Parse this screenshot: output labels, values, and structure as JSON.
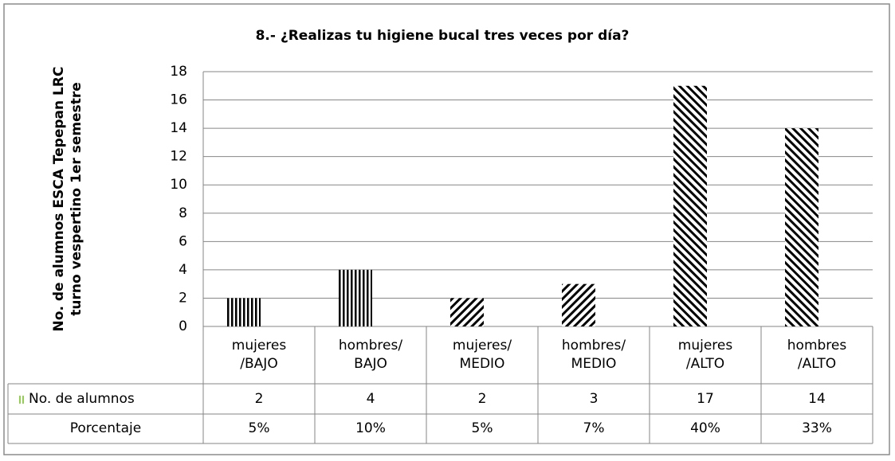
{
  "chart_data": {
    "type": "bar",
    "title": "8.- ¿Realizas tu higiene bucal tres veces por día?",
    "y_label": "No. de alumnos ESCA Tepepan LRC\nturno vespertino 1er  semestre",
    "categories": [
      "mujeres\n/BAJO",
      "hombres/\nBAJO",
      "mujeres/\nMEDIO",
      "hombres/\nMEDIO",
      "mujeres\n/ALTO",
      "hombres\n/ALTO"
    ],
    "series": [
      {
        "name": "No. de alumnos",
        "color": "#000000",
        "values": [
          2,
          4,
          2,
          3,
          17,
          14
        ]
      }
    ],
    "patterns": [
      "vertical",
      "vertical",
      "forward",
      "forward",
      "backward",
      "backward"
    ],
    "percentages": {
      "name": "Porcentaje",
      "values": [
        5,
        10,
        5,
        7,
        40,
        33
      ],
      "value_labels": [
        "5%",
        "10%",
        "5%",
        "7%",
        "40%",
        "33%"
      ]
    },
    "ylim": [
      0,
      18
    ],
    "yticks": [
      0,
      2,
      4,
      6,
      8,
      10,
      12,
      14,
      16,
      18
    ],
    "grid": true
  }
}
